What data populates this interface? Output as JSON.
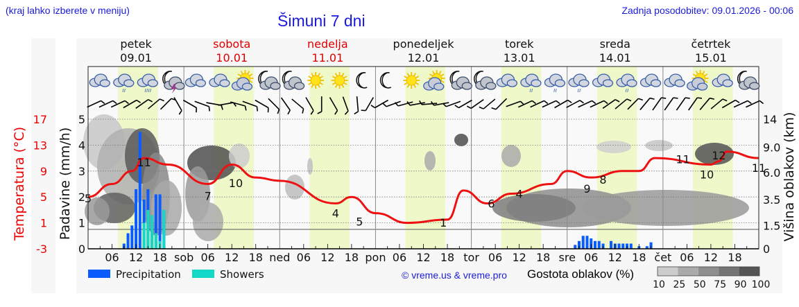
{
  "header": {
    "hint": "(kraj lahko izberete v meniju)",
    "title": "Šimuni 7 dni",
    "updated": "Zadnja posodobitev: 09.01.2026 - 00:06"
  },
  "days": [
    {
      "name": "petek",
      "date": "09.01",
      "weekend": false,
      "short": ""
    },
    {
      "name": "sobota",
      "date": "10.01",
      "weekend": true,
      "short": "sob"
    },
    {
      "name": "nedelja",
      "date": "11.01",
      "weekend": true,
      "short": "ned"
    },
    {
      "name": "ponedeljek",
      "date": "12.01",
      "weekend": false,
      "short": "pon"
    },
    {
      "name": "torek",
      "date": "13.01",
      "weekend": false,
      "short": "tor"
    },
    {
      "name": "sreda",
      "date": "14.01",
      "weekend": false,
      "short": "sre"
    },
    {
      "name": "četrtek",
      "date": "15.01",
      "weekend": false,
      "short": "čet"
    }
  ],
  "axes": {
    "left_temp_label": "Temperatura (°C)",
    "left_temp_ticks": [
      "17",
      "13",
      "9",
      "5",
      "1",
      "-3"
    ],
    "left_precip_label": "Padavine (mm/h)",
    "left_precip_ticks": [
      "5",
      "4",
      "3",
      "2",
      "1",
      "0"
    ],
    "right_label": "Višina oblakov (km)",
    "right_ticks": [
      "14",
      "9.0",
      "6.0",
      "3.5",
      "1.5",
      "0"
    ],
    "hour_ticks": [
      "06",
      "12",
      "18"
    ]
  },
  "legend": {
    "precipitation": "Precipitation",
    "showers": "Showers",
    "copyright": "© vreme.us & vreme.pro",
    "cloud_density_label": "Gostota oblakov (%)",
    "cloud_density_ticks": [
      "10",
      "25",
      "50",
      "75",
      "90",
      "100"
    ]
  },
  "colors": {
    "precipitation": "#0a5cff",
    "showers": "#12d8c8",
    "temperature": "#ee1111",
    "daylight": "#eef8c8",
    "weekend_text": "#dd0000",
    "link_blue": "#1a1adb"
  },
  "icons": [
    "cloudy",
    "cloudy-light-rain",
    "cloudy-rain",
    "night-cloud-thunder",
    "cloudy",
    "cloudy",
    "sun-cloud",
    "night-partly-cloudy",
    "night-partly-cloudy",
    "sun",
    "sun",
    "moon",
    "moon",
    "sun",
    "sun-cloud",
    "night-partly-cloudy",
    "night-partly-cloudy",
    "cloudy",
    "cloudy-light-rain",
    "cloudy-light-rain",
    "cloudy-light-rain",
    "cloudy",
    "cloudy-light-rain",
    "cloudy",
    "cloudy",
    "sun-cloud",
    "cloudy",
    "night-partly-cloudy"
  ],
  "chart_data": {
    "type": "line",
    "title": "Šimuni 7 dni",
    "x_range": [
      "09.01 00:00",
      "16.01 00:00"
    ],
    "ylabel_left": "Padavine (mm/h)",
    "ylabel_temp": "Temperatura (°C)",
    "ylabel_right": "Višina oblakov (km)",
    "ylim_precip": [
      0,
      5
    ],
    "ylim_temp": [
      -3,
      17
    ],
    "temperature_series": {
      "name": "Temperatura",
      "hours": [
        0,
        6,
        11,
        14,
        20,
        30,
        36,
        42,
        48,
        62,
        66,
        72,
        80,
        90,
        94,
        100,
        106,
        116,
        120,
        126,
        134,
        138,
        142,
        156,
        158,
        160,
        168
      ],
      "values": [
        5,
        7,
        9,
        11,
        10,
        7,
        10,
        8,
        7.5,
        4,
        5,
        2.5,
        1,
        1.5,
        6,
        4,
        5.5,
        7,
        9,
        8,
        9,
        9,
        11,
        10,
        10.5,
        12,
        11
      ]
    },
    "temperature_labels": [
      {
        "hour": 0,
        "value": "5"
      },
      {
        "hour": 14,
        "value": "11"
      },
      {
        "hour": 30,
        "value": "7"
      },
      {
        "hour": 37,
        "value": "10"
      },
      {
        "hour": 62,
        "value": "4"
      },
      {
        "hour": 68,
        "value": "5"
      },
      {
        "hour": 89,
        "value": "1"
      },
      {
        "hour": 101,
        "value": "6"
      },
      {
        "hour": 108,
        "value": "4"
      },
      {
        "hour": 125,
        "value": "9"
      },
      {
        "hour": 129,
        "value": "8"
      },
      {
        "hour": 149,
        "value": "11"
      },
      {
        "hour": 155,
        "value": "10"
      },
      {
        "hour": 158,
        "value": "12"
      },
      {
        "hour": 168,
        "value": "11"
      }
    ],
    "precipitation_series": {
      "name": "Precipitation",
      "hours": [
        9,
        10,
        11,
        12,
        13,
        14,
        15,
        16,
        17,
        18,
        19,
        122,
        123,
        124,
        125,
        126,
        127,
        128,
        129,
        131,
        132,
        133,
        134,
        135,
        136,
        138,
        140,
        141
      ],
      "values": [
        0.2,
        0.6,
        0.9,
        2.3,
        4.5,
        1.9,
        2.3,
        1.2,
        2.1,
        2.1,
        1.5,
        0.15,
        0.3,
        0.5,
        0.5,
        0.4,
        0.3,
        0.3,
        0.2,
        0.3,
        0.2,
        0.2,
        0.2,
        0.2,
        0.2,
        0.1,
        0.1,
        0.25
      ]
    },
    "showers_series": {
      "name": "Showers",
      "hours": [
        14,
        15,
        16,
        17,
        18,
        19
      ],
      "values": [
        1.0,
        1.5,
        1.3,
        0.6,
        0.3,
        1.5
      ]
    },
    "grid": true,
    "legend_position": "bottom"
  }
}
